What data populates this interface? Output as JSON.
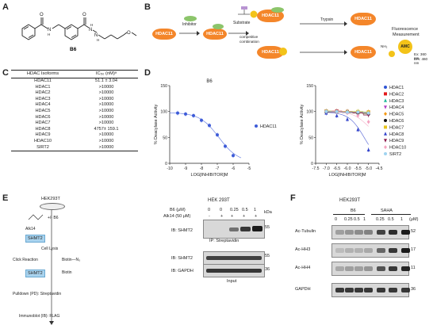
{
  "panels": {
    "A": "A",
    "B": "B",
    "C": "C",
    "D": "D",
    "E": "E",
    "F": "F"
  },
  "panelA": {
    "compound": "B6"
  },
  "panelB": {
    "hdac_label": "HDAC11",
    "inhibitor": "Inhibitor",
    "substrate": "Substrate",
    "competitive": "competitive",
    "combination": "combination",
    "trypsin": "Trypsin",
    "fluor": "Fluorescence",
    "measurement": "Measurement",
    "amc": "AMC",
    "ex": "Ex: 360 nm",
    "em": "Em: 460 nm",
    "nh2": "NH₂"
  },
  "panelC": {
    "col1": "HDAC Isoforms",
    "col2": "IC₅₀ (nM)ᵃ",
    "rows": [
      {
        "iso": "HDAC11",
        "val": "51.1 ± 3.04"
      },
      {
        "iso": "HDAC1",
        "val": ">10000"
      },
      {
        "iso": "HDAC2",
        "val": ">10000"
      },
      {
        "iso": "HDAC3",
        "val": ">10000"
      },
      {
        "iso": "HDAC4",
        "val": ">10000"
      },
      {
        "iso": "HDAC5",
        "val": ">10000"
      },
      {
        "iso": "HDAC6",
        "val": ">10000"
      },
      {
        "iso": "HDAC7",
        "val": ">10000"
      },
      {
        "iso": "HDAC8",
        "val": "4757± 159.1"
      },
      {
        "iso": "HDAC9",
        "val": ">10000"
      },
      {
        "iso": "HDAC10",
        "val": ">10000"
      },
      {
        "iso": "SIRT2",
        "val": ">10000"
      }
    ]
  },
  "chart_data": [
    {
      "type": "line",
      "title": "B6",
      "xlabel": "LOG[INHIBITOR]M",
      "ylabel": "% Deacylase Activity",
      "xlim": [
        -10,
        -5
      ],
      "ylim": [
        0,
        150
      ],
      "xticks": [
        "-10",
        "-9",
        "-8",
        "-7",
        "-6",
        "-5"
      ],
      "yticks": [
        "0",
        "50",
        "100",
        "150"
      ],
      "legend_position": "right",
      "series": [
        {
          "name": "HDAC11",
          "color": "#3d5bd8",
          "x": [
            -9.5,
            -9,
            -8.5,
            -8,
            -7.5,
            -7,
            -6.5,
            -6
          ],
          "y": [
            97,
            95,
            92,
            83,
            73,
            55,
            33,
            15
          ]
        }
      ]
    },
    {
      "type": "line",
      "xlabel": "LOG[INHIBITOR]M",
      "ylabel": "% Deacylase Activity",
      "xlim": [
        -7.5,
        -4.5
      ],
      "ylim": [
        0,
        150
      ],
      "xticks": [
        "-7.5",
        "-7.0",
        "-6.5",
        "-6.0",
        "-5.5",
        "-5.0",
        "-4.5"
      ],
      "yticks": [
        "0",
        "50",
        "100",
        "150"
      ],
      "legend_position": "right",
      "series": [
        {
          "name": "HDAC1",
          "color": "#2f55d4",
          "marker": "circle",
          "x": [
            -7,
            -6.5,
            -6,
            -5.5,
            -5
          ],
          "y": [
            100,
            100,
            99,
            99,
            98
          ]
        },
        {
          "name": "HDAC2",
          "color": "#e31a1c",
          "marker": "square",
          "x": [
            -7,
            -6.5,
            -6,
            -5.5,
            -5
          ],
          "y": [
            100,
            101,
            100,
            99,
            99
          ]
        },
        {
          "name": "HDAC3",
          "color": "#1fb89a",
          "marker": "triangle",
          "x": [
            -7,
            -6.5,
            -6,
            -5.5,
            -5
          ],
          "y": [
            101,
            100,
            100,
            100,
            98
          ]
        },
        {
          "name": "HDAC4",
          "color": "#b03fc3",
          "marker": "triangle-down",
          "x": [
            -7,
            -6.5,
            -6,
            -5.5,
            -5
          ],
          "y": [
            100,
            99,
            100,
            98,
            97
          ]
        },
        {
          "name": "HDAC5",
          "color": "#f39a17",
          "marker": "diamond",
          "x": [
            -7,
            -6.5,
            -6,
            -5.5,
            -5
          ],
          "y": [
            99,
            100,
            99,
            98,
            96
          ]
        },
        {
          "name": "HDAC6",
          "color": "#111111",
          "marker": "circle",
          "x": [
            -7,
            -6.5,
            -6,
            -5.5,
            -5
          ],
          "y": [
            99,
            99,
            98,
            97,
            95
          ]
        },
        {
          "name": "HDAC7",
          "color": "#e7c31c",
          "marker": "square",
          "x": [
            -7,
            -6.5,
            -6,
            -5.5,
            -5
          ],
          "y": [
            101,
            100,
            100,
            100,
            99
          ]
        },
        {
          "name": "HDAC8",
          "color": "#3344cc",
          "marker": "triangle",
          "x": [
            -7,
            -6.5,
            -6,
            -5.5,
            -5
          ],
          "y": [
            97,
            92,
            85,
            65,
            26
          ]
        },
        {
          "name": "HDAC9",
          "color": "#8b1a4a",
          "marker": "triangle-down",
          "x": [
            -7,
            -6.5,
            -6,
            -5.5,
            -5
          ],
          "y": [
            100,
            100,
            99,
            97,
            93
          ]
        },
        {
          "name": "HDAC10",
          "color": "#f4a3c0",
          "marker": "diamond",
          "x": [
            -7,
            -6.5,
            -6,
            -5.5,
            -5
          ],
          "y": [
            100,
            99,
            97,
            92,
            80
          ]
        },
        {
          "name": "SIRT2",
          "color": "#9fd3f0",
          "marker": "circle",
          "x": [
            -7,
            -6.5,
            -6,
            -5.5,
            -5
          ],
          "y": [
            100,
            100,
            99,
            99,
            97
          ]
        }
      ]
    }
  ],
  "panelE": {
    "cell": "HEK293T",
    "b6": "+/- B6",
    "alk14": "Alk14",
    "shmt2": "SHMT2",
    "cell_lysis": "Cell Lysis",
    "click": "Click Reaction",
    "biotin_n3": "Biotin—N₃",
    "biotin": "Biotin",
    "pulldown": "Pulldown (PD): Streptavidin",
    "immunoblot": "Immunoblot (IB): FLAG",
    "blot_title": "HEK 293T",
    "b6_label": "B6 (μM)",
    "alk_label": "Alk14 (50 μM)",
    "b6_vals": [
      "0",
      "0",
      "0.25",
      "0.5",
      "1"
    ],
    "alk_vals": [
      "-",
      "+",
      "+",
      "+",
      "+"
    ],
    "kda": "kDa",
    "ib_shmt2": "IB: SHMT2",
    "ip_strep": "IP: Streptavidin",
    "ib_gapdh": "IB: GAPDH",
    "input": "Input",
    "mw": [
      "55",
      "55",
      "36"
    ]
  },
  "panelF": {
    "cell": "HEK293T",
    "b6": "B6",
    "saha": "SAHA",
    "doses": [
      "0",
      "0.25",
      "0.5",
      "1",
      "0.25",
      "0.5",
      "1"
    ],
    "unit": "(μM)",
    "rows": [
      "Ac-Tubulin",
      "Ac-HH3",
      "Ac-HH4",
      "GAPDH"
    ],
    "mw": [
      "52",
      "17",
      "11",
      "36"
    ]
  }
}
